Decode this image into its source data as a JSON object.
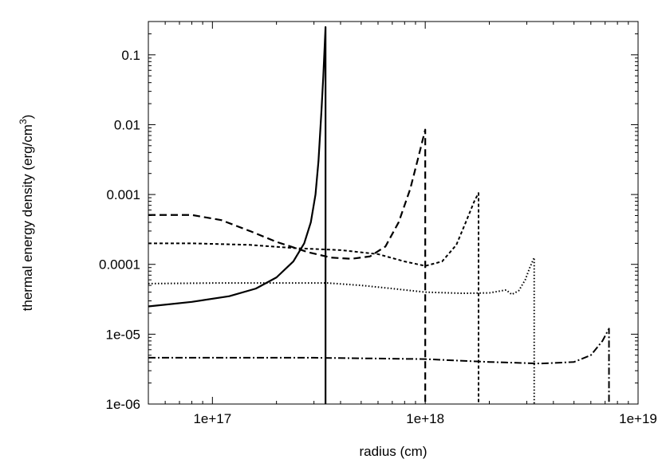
{
  "chart_data": {
    "type": "line",
    "xscale": "log",
    "yscale": "log",
    "xlim": [
      5e+16,
      1e+19
    ],
    "ylim": [
      1e-06,
      0.3
    ],
    "xlabel": "radius (cm)",
    "ylabel_main": "thermal energy density (erg/cm",
    "ylabel_sup": "3",
    "ylabel_close": ")",
    "grid": false,
    "legend": "none",
    "xticks": [
      {
        "value": 1e+17,
        "label": "1e+17"
      },
      {
        "value": 1e+18,
        "label": "1e+18"
      },
      {
        "value": 1e+19,
        "label": "1e+19"
      }
    ],
    "yticks": [
      {
        "value": 1e-06,
        "label": "1e-06"
      },
      {
        "value": 1e-05,
        "label": "1e-05"
      },
      {
        "value": 0.0001,
        "label": "0.0001"
      },
      {
        "value": 0.001,
        "label": "0.001"
      },
      {
        "value": 0.01,
        "label": "0.01"
      },
      {
        "value": 0.1,
        "label": "0.1"
      }
    ],
    "series": [
      {
        "style": "solid",
        "points": [
          [
            5e+16,
            2.5e-05
          ],
          [
            8e+16,
            2.9e-05
          ],
          [
            1.2e+17,
            3.5e-05
          ],
          [
            1.6e+17,
            4.5e-05
          ],
          [
            2e+17,
            6.5e-05
          ],
          [
            2.4e+17,
            0.00011
          ],
          [
            2.7e+17,
            0.0002
          ],
          [
            2.9e+17,
            0.0004
          ],
          [
            3.05e+17,
            0.001
          ],
          [
            3.15e+17,
            0.003
          ],
          [
            3.25e+17,
            0.015
          ],
          [
            3.32e+17,
            0.05
          ],
          [
            3.4e+17,
            0.25
          ],
          [
            3.4e+17,
            1e-06
          ]
        ]
      },
      {
        "style": "dashed",
        "points": [
          [
            5e+16,
            0.00051
          ],
          [
            8e+16,
            0.00051
          ],
          [
            1.1e+17,
            0.00043
          ],
          [
            1.5e+17,
            0.0003
          ],
          [
            2e+17,
            0.00021
          ],
          [
            2.8e+17,
            0.00015
          ],
          [
            3.6e+17,
            0.000125
          ],
          [
            4.5e+17,
            0.00012
          ],
          [
            5.5e+17,
            0.00013
          ],
          [
            6.5e+17,
            0.00018
          ],
          [
            7.5e+17,
            0.0004
          ],
          [
            8.5e+17,
            0.0012
          ],
          [
            9.3e+17,
            0.0035
          ],
          [
            1e+18,
            0.0085
          ],
          [
            1e+18,
            1e-06
          ]
        ]
      },
      {
        "style": "short-dashed",
        "points": [
          [
            5e+16,
            0.0002
          ],
          [
            8e+16,
            0.0002
          ],
          [
            1.5e+17,
            0.00019
          ],
          [
            2.5e+17,
            0.00017
          ],
          [
            4e+17,
            0.00016
          ],
          [
            6e+17,
            0.00014
          ],
          [
            8e+17,
            0.00011
          ],
          [
            1e+18,
            9.5e-05
          ],
          [
            1.2e+18,
            0.00011
          ],
          [
            1.4e+18,
            0.00019
          ],
          [
            1.55e+18,
            0.0004
          ],
          [
            1.7e+18,
            0.0008
          ],
          [
            1.78e+18,
            0.00105
          ],
          [
            1.78e+18,
            1e-06
          ]
        ]
      },
      {
        "style": "dotted",
        "points": [
          [
            5e+16,
            5.3e-05
          ],
          [
            1e+17,
            5.4e-05
          ],
          [
            2e+17,
            5.4e-05
          ],
          [
            3.5e+17,
            5.4e-05
          ],
          [
            5e+17,
            5e-05
          ],
          [
            7e+17,
            4.5e-05
          ],
          [
            1e+18,
            4e-05
          ],
          [
            1.5e+18,
            3.85e-05
          ],
          [
            2e+18,
            3.9e-05
          ],
          [
            2.4e+18,
            4.3e-05
          ],
          [
            2.55e+18,
            3.7e-05
          ],
          [
            2.75e+18,
            4.2e-05
          ],
          [
            2.95e+18,
            6e-05
          ],
          [
            3.1e+18,
            9e-05
          ],
          [
            3.25e+18,
            0.000125
          ],
          [
            3.25e+18,
            1e-06
          ]
        ]
      },
      {
        "style": "dash-dot",
        "points": [
          [
            5e+16,
            4.6e-06
          ],
          [
            1e+17,
            4.6e-06
          ],
          [
            3e+17,
            4.6e-06
          ],
          [
            1e+18,
            4.4e-06
          ],
          [
            2e+18,
            4e-06
          ],
          [
            3.5e+18,
            3.8e-06
          ],
          [
            5e+18,
            4e-06
          ],
          [
            6e+18,
            5e-06
          ],
          [
            6.8e+18,
            8e-06
          ],
          [
            7.3e+18,
            1.2e-05
          ],
          [
            7.3e+18,
            1e-06
          ]
        ]
      }
    ]
  }
}
